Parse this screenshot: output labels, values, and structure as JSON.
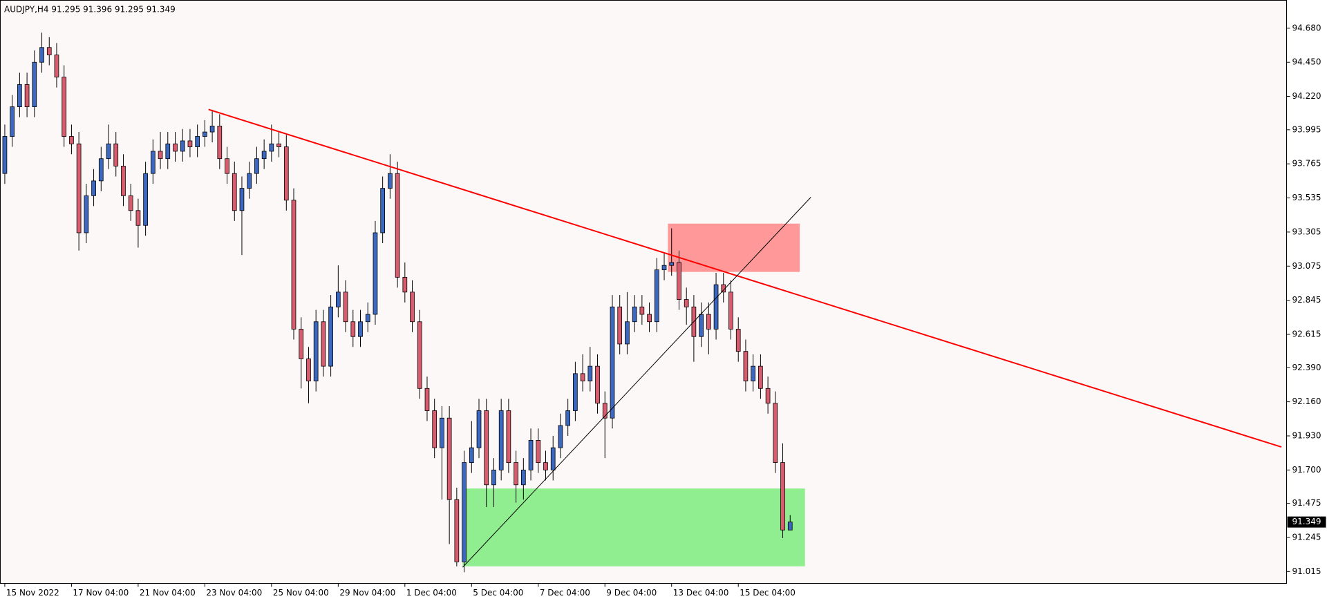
{
  "chart_data": {
    "type": "candlestick",
    "title": "AUDJPY,H4  91.295 91.396 91.295 91.349",
    "up_color": "#3d68c0",
    "down_color": "#d65c6e",
    "xlim": [
      -0.6,
      173
    ],
    "ylim": [
      90.935,
      94.868
    ],
    "yticks": [
      {
        "value": 94.68,
        "label": "94.680"
      },
      {
        "value": 94.45,
        "label": "94.450"
      },
      {
        "value": 94.22,
        "label": "94.220"
      },
      93.995,
      93.765,
      93.535,
      93.305,
      93.075,
      92.845,
      92.615,
      {
        "value": 92.39,
        "label": "92.390"
      },
      {
        "value": 92.16,
        "label": "92.160"
      },
      {
        "value": 91.93,
        "label": "91.930"
      },
      {
        "value": 91.7,
        "label": "91.700"
      },
      91.475,
      91.245,
      91.015
    ],
    "xticks": [
      {
        "value": 0,
        "label": "15 Nov 2022"
      },
      {
        "value": 9,
        "label": "17 Nov 04:00"
      },
      {
        "value": 18,
        "label": "21 Nov 04:00"
      },
      {
        "value": 27,
        "label": "23 Nov 04:00"
      },
      {
        "value": 36,
        "label": "25 Nov 04:00"
      },
      {
        "value": 45,
        "label": "29 Nov 04:00"
      },
      {
        "value": 54,
        "label": "1 Dec 04:00"
      },
      {
        "value": 63,
        "label": "5 Dec 04:00"
      },
      {
        "value": 72,
        "label": "7 Dec 04:00"
      },
      {
        "value": 81,
        "label": "9 Dec 04:00"
      },
      {
        "value": 90,
        "label": "13 Dec 04:00"
      },
      {
        "value": 99,
        "label": "15 Dec 04:00"
      }
    ],
    "ohlc": [
      [
        93.7,
        94.03,
        93.63,
        93.95
      ],
      [
        93.95,
        94.23,
        93.88,
        94.15
      ],
      [
        94.15,
        94.38,
        94.08,
        94.3
      ],
      [
        94.3,
        94.38,
        94.08,
        94.15
      ],
      [
        94.15,
        94.53,
        94.08,
        94.45
      ],
      [
        94.45,
        94.65,
        94.38,
        94.55
      ],
      [
        94.55,
        94.62,
        94.43,
        94.5
      ],
      [
        94.5,
        94.58,
        94.28,
        94.35
      ],
      [
        94.35,
        94.43,
        93.88,
        93.95
      ],
      [
        93.95,
        94.03,
        93.83,
        93.9
      ],
      [
        93.9,
        93.98,
        93.18,
        93.3
      ],
      [
        93.3,
        93.63,
        93.23,
        93.55
      ],
      [
        93.55,
        93.73,
        93.48,
        93.65
      ],
      [
        93.65,
        93.88,
        93.58,
        93.8
      ],
      [
        93.8,
        94.03,
        93.73,
        93.9
      ],
      [
        93.9,
        93.98,
        93.68,
        93.75
      ],
      [
        93.75,
        93.83,
        93.48,
        93.55
      ],
      [
        93.55,
        93.63,
        93.38,
        93.45
      ],
      [
        93.45,
        93.53,
        93.2,
        93.35
      ],
      [
        93.35,
        93.78,
        93.28,
        93.7
      ],
      [
        93.7,
        93.93,
        93.63,
        93.85
      ],
      [
        93.85,
        93.98,
        93.73,
        93.8
      ],
      [
        93.8,
        93.98,
        93.73,
        93.9
      ],
      [
        93.9,
        93.98,
        93.78,
        93.85
      ],
      [
        93.85,
        94.0,
        93.78,
        93.92
      ],
      [
        93.92,
        94.0,
        93.81,
        93.88
      ],
      [
        93.88,
        94.03,
        93.81,
        93.95
      ],
      [
        93.95,
        94.06,
        93.88,
        93.98
      ],
      [
        93.98,
        94.13,
        93.91,
        94.02
      ],
      [
        94.02,
        94.1,
        93.73,
        93.8
      ],
      [
        93.8,
        93.88,
        93.63,
        93.7
      ],
      [
        93.7,
        93.78,
        93.38,
        93.45
      ],
      [
        93.45,
        93.68,
        93.15,
        93.6
      ],
      [
        93.6,
        93.78,
        93.53,
        93.7
      ],
      [
        93.7,
        93.88,
        93.63,
        93.8
      ],
      [
        93.8,
        93.93,
        93.73,
        93.85
      ],
      [
        93.85,
        94.03,
        93.78,
        93.9
      ],
      [
        93.9,
        93.98,
        93.81,
        93.88
      ],
      [
        93.88,
        93.96,
        93.45,
        93.52
      ],
      [
        93.52,
        93.6,
        92.58,
        92.65
      ],
      [
        92.65,
        92.73,
        92.25,
        92.45
      ],
      [
        92.45,
        92.53,
        92.15,
        92.3
      ],
      [
        92.3,
        92.78,
        92.23,
        92.7
      ],
      [
        92.7,
        92.78,
        92.33,
        92.4
      ],
      [
        92.4,
        92.88,
        92.33,
        92.8
      ],
      [
        92.8,
        93.08,
        92.73,
        92.9
      ],
      [
        92.9,
        92.98,
        92.63,
        92.7
      ],
      [
        92.7,
        92.78,
        92.53,
        92.6
      ],
      [
        92.6,
        92.78,
        92.53,
        92.7
      ],
      [
        92.7,
        92.83,
        92.63,
        92.75
      ],
      [
        92.75,
        93.38,
        92.68,
        93.3
      ],
      [
        93.3,
        93.68,
        93.23,
        93.6
      ],
      [
        93.6,
        93.83,
        93.53,
        93.7
      ],
      [
        93.7,
        93.78,
        92.93,
        93.0
      ],
      [
        93.0,
        93.1,
        92.83,
        92.9
      ],
      [
        92.9,
        92.98,
        92.63,
        92.7
      ],
      [
        92.7,
        92.78,
        92.18,
        92.25
      ],
      [
        92.25,
        92.33,
        92.03,
        92.1
      ],
      [
        92.1,
        92.18,
        91.78,
        91.85
      ],
      [
        91.85,
        92.13,
        91.5,
        92.05
      ],
      [
        92.05,
        92.13,
        91.2,
        91.5
      ],
      [
        91.5,
        91.58,
        91.05,
        91.08
      ],
      [
        91.08,
        91.83,
        91.01,
        91.75
      ],
      [
        91.75,
        92.03,
        91.68,
        91.85
      ],
      [
        91.85,
        92.18,
        91.78,
        92.1
      ],
      [
        92.1,
        92.18,
        91.45,
        91.6
      ],
      [
        91.6,
        91.78,
        91.45,
        91.7
      ],
      [
        91.7,
        92.18,
        91.63,
        92.1
      ],
      [
        92.1,
        92.18,
        91.68,
        91.75
      ],
      [
        91.75,
        91.83,
        91.48,
        91.6
      ],
      [
        91.6,
        91.78,
        91.5,
        91.7
      ],
      [
        91.7,
        91.98,
        91.63,
        91.9
      ],
      [
        91.9,
        91.98,
        91.68,
        91.75
      ],
      [
        91.75,
        91.83,
        91.63,
        91.7
      ],
      [
        91.7,
        91.93,
        91.63,
        91.85
      ],
      [
        91.85,
        92.08,
        91.78,
        92.0
      ],
      [
        92.0,
        92.18,
        91.93,
        92.1
      ],
      [
        92.1,
        92.43,
        92.03,
        92.35
      ],
      [
        92.35,
        92.48,
        92.23,
        92.3
      ],
      [
        92.3,
        92.53,
        92.23,
        92.4
      ],
      [
        92.4,
        92.48,
        92.08,
        92.15
      ],
      [
        92.15,
        92.23,
        91.78,
        92.05
      ],
      [
        92.05,
        92.88,
        91.98,
        92.8
      ],
      [
        92.8,
        92.88,
        92.48,
        92.55
      ],
      [
        92.55,
        92.9,
        92.48,
        92.7
      ],
      [
        92.7,
        92.88,
        92.63,
        92.8
      ],
      [
        92.8,
        92.88,
        92.68,
        92.75
      ],
      [
        92.75,
        92.83,
        92.63,
        92.7
      ],
      [
        92.7,
        93.13,
        92.63,
        93.05
      ],
      [
        93.05,
        93.16,
        92.98,
        93.08
      ],
      [
        93.08,
        93.33,
        93.01,
        93.1
      ],
      [
        93.1,
        93.18,
        92.78,
        92.85
      ],
      [
        92.85,
        92.93,
        92.68,
        92.8
      ],
      [
        92.8,
        92.88,
        92.43,
        92.6
      ],
      [
        92.6,
        92.83,
        92.53,
        92.75
      ],
      [
        92.75,
        92.83,
        92.48,
        92.65
      ],
      [
        92.65,
        93.03,
        92.58,
        92.95
      ],
      [
        92.95,
        93.03,
        92.83,
        92.9
      ],
      [
        92.9,
        92.98,
        92.58,
        92.65
      ],
      [
        92.65,
        92.73,
        92.43,
        92.5
      ],
      [
        92.5,
        92.58,
        92.23,
        92.3
      ],
      [
        92.3,
        92.48,
        92.23,
        92.4
      ],
      [
        92.4,
        92.48,
        92.18,
        92.25
      ],
      [
        92.25,
        92.33,
        92.08,
        92.15
      ],
      [
        92.15,
        92.23,
        91.68,
        91.75
      ],
      [
        91.75,
        91.88,
        91.24,
        91.295
      ],
      [
        91.295,
        91.396,
        91.295,
        91.349
      ]
    ],
    "zones": [
      {
        "x": [
          89.5,
          107.3
        ],
        "y": [
          93.036,
          93.362
        ],
        "color": "#ff9999"
      },
      {
        "x": [
          61.8,
          108
        ],
        "y": [
          91.05,
          91.575
        ],
        "color": "#90ee90"
      }
    ],
    "lines": [
      {
        "x": [
          27.5,
          172.3
        ],
        "y": [
          94.132,
          91.855
        ],
        "color": "#ff0000",
        "width": 2
      },
      {
        "x": [
          61.8,
          108.8
        ],
        "y": [
          91.044,
          93.54
        ],
        "color": "#000000",
        "width": 1
      }
    ]
  }
}
